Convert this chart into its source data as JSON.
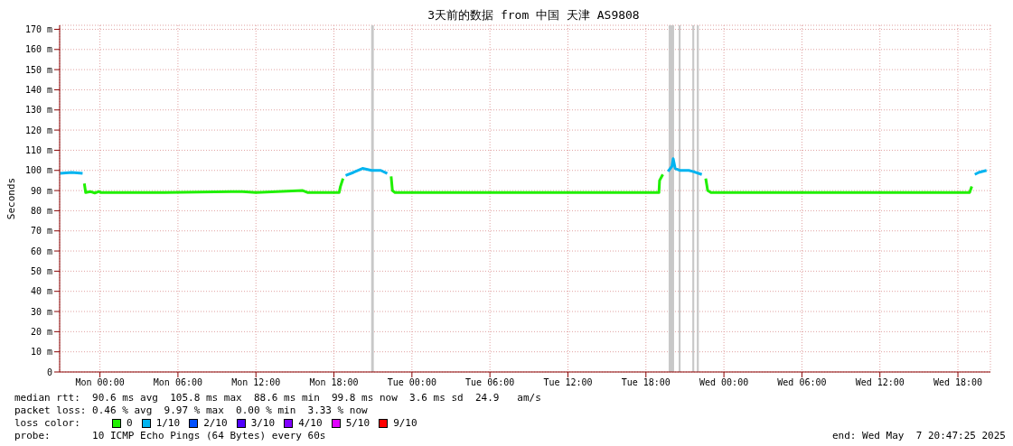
{
  "chart_data": {
    "type": "line",
    "title": "3天前的数据 from 中国 天津 AS9808",
    "ylabel": "Seconds",
    "legend_title": "loss color:",
    "legend": "bottom",
    "grid": true,
    "marker": "none",
    "line_style": "solid",
    "xlim": [
      "2025-05-04T20:54",
      "2025-05-07T20:30"
    ],
    "xticks": [
      {
        "value": "2025-05-05T00:00",
        "label": "Mon 00:00"
      },
      {
        "value": "2025-05-05T06:00",
        "label": "Mon 06:00"
      },
      {
        "value": "2025-05-05T12:00",
        "label": "Mon 12:00"
      },
      {
        "value": "2025-05-05T18:00",
        "label": "Mon 18:00"
      },
      {
        "value": "2025-05-06T00:00",
        "label": "Tue 00:00"
      },
      {
        "value": "2025-05-06T06:00",
        "label": "Tue 06:00"
      },
      {
        "value": "2025-05-06T12:00",
        "label": "Tue 12:00"
      },
      {
        "value": "2025-05-06T18:00",
        "label": "Tue 18:00"
      },
      {
        "value": "2025-05-07T00:00",
        "label": "Wed 00:00"
      },
      {
        "value": "2025-05-07T06:00",
        "label": "Wed 06:00"
      },
      {
        "value": "2025-05-07T12:00",
        "label": "Wed 12:00"
      },
      {
        "value": "2025-05-07T18:00",
        "label": "Wed 18:00"
      }
    ],
    "ylim": [
      0,
      172
    ],
    "yticks": [
      {
        "value": 0,
        "label": "0"
      },
      {
        "value": 10,
        "label": "10 m"
      },
      {
        "value": 20,
        "label": "20 m"
      },
      {
        "value": 30,
        "label": "30 m"
      },
      {
        "value": 40,
        "label": "40 m"
      },
      {
        "value": 50,
        "label": "50 m"
      },
      {
        "value": 60,
        "label": "60 m"
      },
      {
        "value": 70,
        "label": "70 m"
      },
      {
        "value": 80,
        "label": "80 m"
      },
      {
        "value": 90,
        "label": "90 m"
      },
      {
        "value": 100,
        "label": "100 m"
      },
      {
        "value": 110,
        "label": "110 m"
      },
      {
        "value": 120,
        "label": "120 m"
      },
      {
        "value": 130,
        "label": "130 m"
      },
      {
        "value": 140,
        "label": "140 m"
      },
      {
        "value": 150,
        "label": "150 m"
      },
      {
        "value": 160,
        "label": "160 m"
      },
      {
        "value": 170,
        "label": "170 m"
      }
    ],
    "series": [
      {
        "name": "0",
        "color": "#20f000",
        "x": [
          "2025-05-04T22:48",
          "2025-05-04T22:54",
          "2025-05-04T23:15",
          "2025-05-04T23:36",
          "2025-05-04T23:56",
          "2025-05-05T00:06",
          "2025-05-05T05:00",
          "2025-05-05T10:58",
          "2025-05-05T12:00",
          "2025-05-05T15:36",
          "2025-05-05T16:00",
          "2025-05-05T18:24",
          "2025-05-05T18:30",
          "2025-05-05T18:42"
        ],
        "values": [
          93.5,
          89,
          89.5,
          88.8,
          89.5,
          89,
          89,
          89.5,
          89,
          90,
          89,
          89,
          92,
          96
        ]
      },
      {
        "color": "#20f000",
        "x": [
          "2025-05-05T22:24",
          "2025-05-05T22:30",
          "2025-05-05T22:42",
          "2025-05-06T06:00",
          "2025-05-06T19:00",
          "2025-05-06T19:03",
          "2025-05-06T19:18"
        ],
        "values": [
          97,
          90,
          89,
          89,
          89,
          95,
          98
        ]
      },
      {
        "color": "#20f000",
        "x": [
          "2025-05-06T22:36",
          "2025-05-06T22:45",
          "2025-05-06T23:00",
          "2025-05-07T07:00",
          "2025-05-07T18:54",
          "2025-05-07T19:04"
        ],
        "values": [
          96,
          90,
          89,
          89,
          89,
          92
        ]
      },
      {
        "name": "1/10",
        "color": "#00b4f0",
        "x": [
          "2025-05-04T20:56",
          "2025-05-04T21:50",
          "2025-05-04T22:40",
          "2025-05-04T22:48",
          "2025-05-05T18:54",
          "2025-05-05T19:30",
          "2025-05-05T20:12",
          "2025-05-05T20:54",
          "2025-05-05T21:36",
          "2025-05-05T22:06",
          "2025-05-05T22:24",
          "2025-05-06T19:42",
          "2025-05-06T20:00",
          "2025-05-06T20:06",
          "2025-05-06T20:15",
          "2025-05-06T20:36",
          "2025-05-06T21:18",
          "2025-05-06T21:36",
          "2025-05-06T22:18",
          "2025-05-06T22:36",
          "2025-05-07T19:18",
          "2025-05-07T19:36",
          "2025-05-07T20:12"
        ],
        "values": [
          98.5,
          99,
          98.5,
          null,
          97.5,
          99,
          101,
          100,
          100,
          98.5,
          null,
          99.5,
          102,
          105.8,
          101,
          100,
          100,
          99.5,
          98,
          null,
          98,
          99,
          100
        ]
      },
      {
        "name": "2/10",
        "color": "#0050ff"
      },
      {
        "name": "3/10",
        "color": "#5000ff"
      },
      {
        "name": "4/10",
        "color": "#8000ff"
      },
      {
        "name": "5/10",
        "color": "#e000ff"
      },
      {
        "name": "9/10",
        "color": "#ff0000"
      }
    ],
    "bands": [
      {
        "axis": "x",
        "from": "2025-05-05T20:52",
        "to": "2025-05-05T21:04",
        "color": "#c8c8c8"
      },
      {
        "axis": "x",
        "from": "2025-05-06T19:45",
        "to": "2025-05-06T20:10",
        "color": "#c8c8c8"
      },
      {
        "axis": "x",
        "from": "2025-05-06T20:31",
        "to": "2025-05-06T20:40",
        "color": "#c8c8c8"
      },
      {
        "axis": "x",
        "from": "2025-05-06T21:34",
        "to": "2025-05-06T21:43",
        "color": "#c8c8c8"
      },
      {
        "axis": "x",
        "from": "2025-05-06T21:55",
        "to": "2025-05-06T22:04",
        "color": "#c8c8c8"
      }
    ],
    "annotations": [
      "median rtt:  90.6 ms avg  105.8 ms max  88.6 ms min  99.8 ms now  3.6 ms sd  24.9   am/s",
      "packet loss: 0.46 % avg  9.97 % max  0.00 % min  3.33 % now",
      "probe:       10 ICMP Echo Pings (64 Bytes) every 60s",
      "end: Wed May  7 20:47:25 2025"
    ]
  }
}
